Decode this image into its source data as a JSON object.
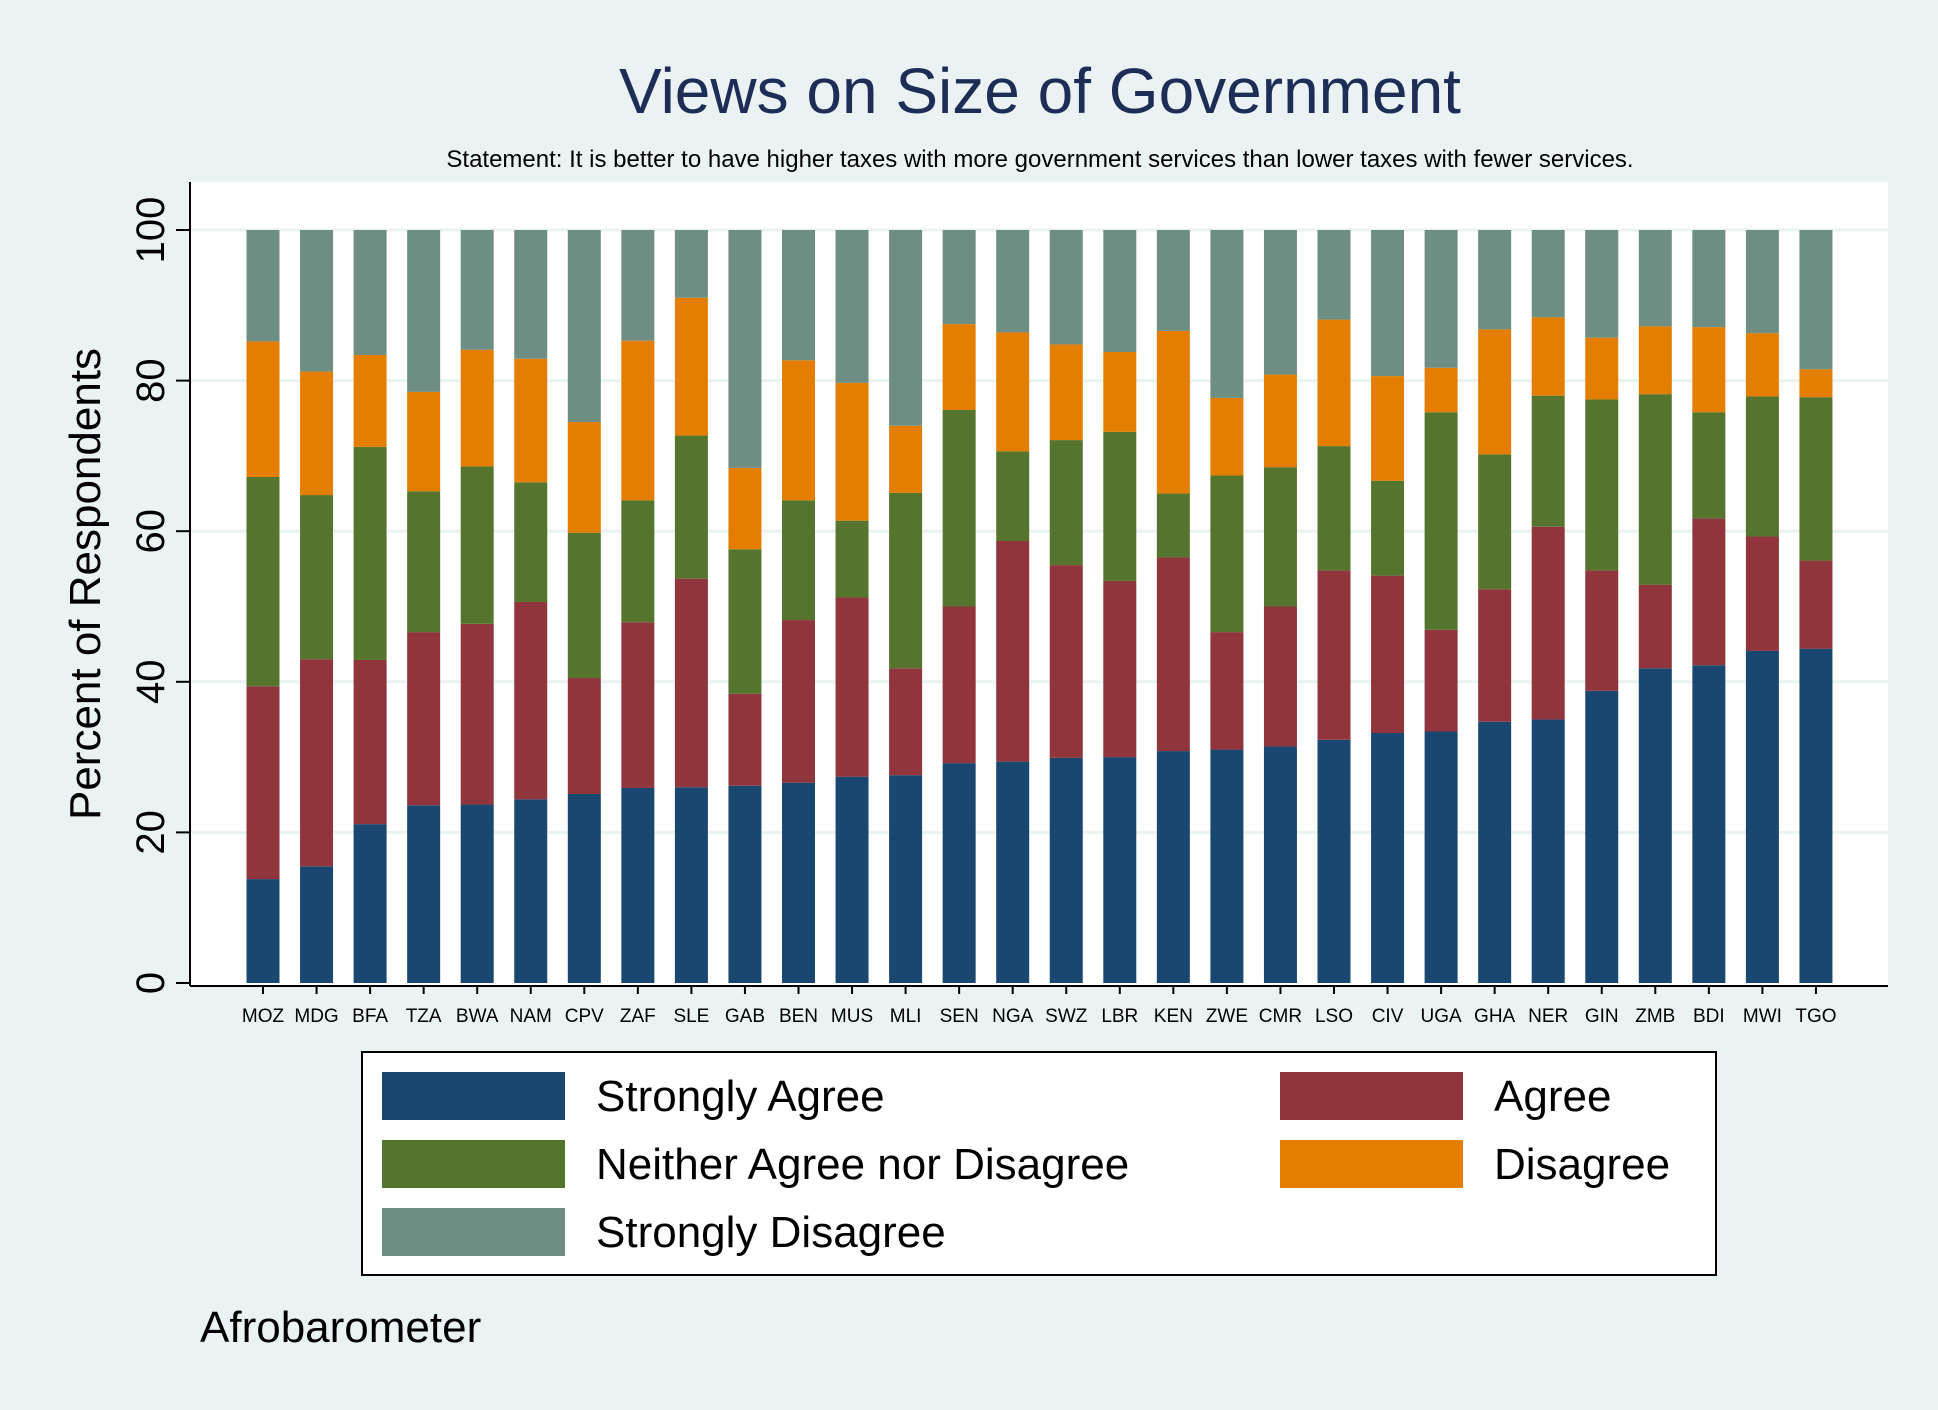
{
  "chart_data": {
    "type": "bar",
    "stacked": true,
    "title": "Views on Size of Government",
    "subtitle": "Statement: It is better to have higher taxes with more government services than lower taxes with fewer services.",
    "ylabel": "Percent of Respondents",
    "xlabel": "",
    "ylim": [
      0,
      100
    ],
    "yticks": [
      0,
      20,
      40,
      60,
      80,
      100
    ],
    "grid": true,
    "legend_position": "bottom",
    "note": "Afrobarometer",
    "categories": [
      "MOZ",
      "MDG",
      "BFA",
      "TZA",
      "BWA",
      "NAM",
      "CPV",
      "ZAF",
      "SLE",
      "GAB",
      "BEN",
      "MUS",
      "MLI",
      "SEN",
      "NGA",
      "SWZ",
      "LBR",
      "KEN",
      "ZWE",
      "CMR",
      "LSO",
      "CIV",
      "UGA",
      "GHA",
      "NER",
      "GIN",
      "ZMB",
      "BDI",
      "MWI",
      "TGO"
    ],
    "series": [
      {
        "name": "Strongly Agree",
        "color": "#1a476f",
        "values": [
          13.8,
          15.5,
          21.1,
          23.6,
          23.7,
          24.4,
          25.1,
          25.9,
          26.0,
          26.2,
          26.6,
          27.4,
          27.6,
          29.2,
          29.4,
          29.9,
          30.0,
          30.8,
          31.0,
          31.4,
          32.3,
          33.2,
          33.4,
          34.7,
          35.0,
          38.8,
          41.8,
          42.2,
          44.1,
          44.4
        ]
      },
      {
        "name": "Agree",
        "color": "#90353b",
        "values": [
          25.6,
          27.5,
          21.8,
          23.0,
          24.0,
          26.2,
          15.4,
          22.0,
          27.7,
          12.2,
          21.6,
          23.8,
          14.2,
          20.8,
          29.3,
          25.6,
          23.4,
          25.7,
          15.6,
          18.6,
          22.5,
          20.9,
          13.5,
          17.6,
          25.6,
          16.0,
          11.1,
          19.5,
          15.2,
          11.7
        ]
      },
      {
        "name": "Neither Agree nor Disagree",
        "color": "#55752f",
        "values": [
          27.8,
          21.8,
          28.3,
          18.7,
          20.9,
          15.9,
          19.3,
          16.2,
          19.0,
          19.2,
          15.9,
          10.2,
          23.3,
          26.1,
          11.9,
          16.6,
          19.8,
          8.5,
          20.8,
          18.5,
          16.5,
          12.6,
          28.9,
          17.9,
          17.4,
          22.7,
          25.3,
          14.1,
          18.6,
          21.7
        ]
      },
      {
        "name": "Disagree",
        "color": "#e37e00",
        "values": [
          18.0,
          16.4,
          12.2,
          13.2,
          15.5,
          16.4,
          14.7,
          21.2,
          18.3,
          10.8,
          18.6,
          18.3,
          8.9,
          11.4,
          15.8,
          12.7,
          10.6,
          21.6,
          10.3,
          12.3,
          16.8,
          13.9,
          5.9,
          16.6,
          10.4,
          8.2,
          9.0,
          11.3,
          8.4,
          3.7
        ]
      },
      {
        "name": "Strongly Disagree",
        "color": "#6e8e84",
        "values": [
          14.8,
          18.8,
          16.6,
          21.5,
          15.9,
          17.1,
          25.5,
          14.7,
          9.0,
          31.6,
          17.3,
          20.3,
          26.0,
          12.5,
          13.6,
          15.2,
          16.2,
          13.4,
          22.3,
          19.2,
          11.9,
          19.4,
          18.3,
          13.2,
          11.6,
          14.3,
          12.8,
          12.9,
          13.7,
          18.5
        ]
      }
    ]
  }
}
